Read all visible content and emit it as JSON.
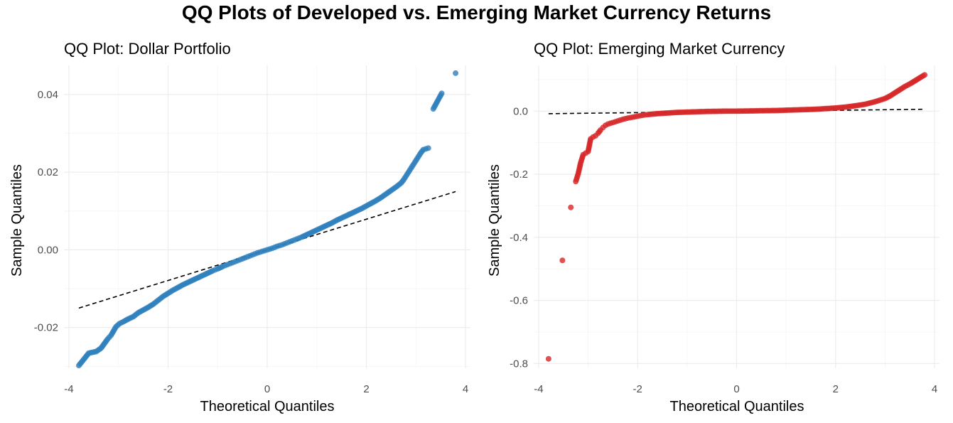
{
  "figure": {
    "title": "QQ Plots of Developed vs. Emerging Market Currency Returns"
  },
  "chart_data": [
    {
      "type": "scatter",
      "title": "QQ Plot: Dollar Portfolio",
      "xlabel": "Theoretical Quantiles",
      "ylabel": "Sample Quantiles",
      "xlim": [
        -4.1,
        4.1
      ],
      "ylim": [
        -0.0305,
        0.0475
      ],
      "xticks": [
        -4,
        -2,
        0,
        2,
        4
      ],
      "xtick_labels": [
        "-4",
        "-2",
        "0",
        "2",
        "4"
      ],
      "yticks": [
        -0.02,
        0.0,
        0.02,
        0.04
      ],
      "ytick_labels": [
        "-0.02",
        "0.00",
        "0.02",
        "0.04"
      ],
      "grid": true,
      "point_color": "#2e7fbd",
      "reference_line": {
        "x": [
          -3.8,
          3.8
        ],
        "y": [
          -0.015,
          0.015
        ]
      },
      "points": [
        [
          -3.8,
          -0.0298
        ],
        [
          -3.6,
          -0.0266
        ],
        [
          -3.45,
          -0.0262
        ],
        [
          -3.35,
          -0.0253
        ],
        [
          -3.22,
          -0.023
        ],
        [
          -3.15,
          -0.022
        ],
        [
          -3.05,
          -0.0198
        ],
        [
          -2.98,
          -0.019
        ],
        [
          -2.9,
          -0.0185
        ],
        [
          -2.8,
          -0.0178
        ],
        [
          -2.7,
          -0.0172
        ],
        [
          -2.6,
          -0.0162
        ],
        [
          -2.5,
          -0.0155
        ],
        [
          -2.4,
          -0.0148
        ],
        [
          -2.3,
          -0.014
        ],
        [
          -2.2,
          -0.013
        ],
        [
          -2.1,
          -0.012
        ],
        [
          -2.0,
          -0.0112
        ],
        [
          -1.9,
          -0.0104
        ],
        [
          -1.8,
          -0.0097
        ],
        [
          -1.7,
          -0.009
        ],
        [
          -1.6,
          -0.0084
        ],
        [
          -1.5,
          -0.0078
        ],
        [
          -1.4,
          -0.0072
        ],
        [
          -1.3,
          -0.0066
        ],
        [
          -1.2,
          -0.006
        ],
        [
          -1.1,
          -0.0054
        ],
        [
          -1.0,
          -0.0049
        ],
        [
          -0.9,
          -0.0043
        ],
        [
          -0.8,
          -0.0038
        ],
        [
          -0.7,
          -0.0033
        ],
        [
          -0.6,
          -0.0028
        ],
        [
          -0.5,
          -0.0023
        ],
        [
          -0.4,
          -0.0018
        ],
        [
          -0.3,
          -0.0013
        ],
        [
          -0.2,
          -0.0008
        ],
        [
          -0.1,
          -0.0004
        ],
        [
          0.0,
          0.0
        ],
        [
          0.1,
          0.0004
        ],
        [
          0.2,
          0.0009
        ],
        [
          0.3,
          0.0013
        ],
        [
          0.4,
          0.0018
        ],
        [
          0.5,
          0.0023
        ],
        [
          0.6,
          0.0028
        ],
        [
          0.7,
          0.0033
        ],
        [
          0.8,
          0.0039
        ],
        [
          0.9,
          0.0045
        ],
        [
          1.0,
          0.0051
        ],
        [
          1.1,
          0.0057
        ],
        [
          1.2,
          0.0063
        ],
        [
          1.3,
          0.0069
        ],
        [
          1.4,
          0.0076
        ],
        [
          1.5,
          0.0082
        ],
        [
          1.6,
          0.0088
        ],
        [
          1.7,
          0.0094
        ],
        [
          1.8,
          0.01
        ],
        [
          1.9,
          0.0106
        ],
        [
          2.0,
          0.0113
        ],
        [
          2.1,
          0.012
        ],
        [
          2.2,
          0.0127
        ],
        [
          2.3,
          0.0135
        ],
        [
          2.4,
          0.0144
        ],
        [
          2.5,
          0.0153
        ],
        [
          2.6,
          0.0162
        ],
        [
          2.7,
          0.0172
        ],
        [
          2.75,
          0.018
        ],
        [
          2.8,
          0.019
        ],
        [
          2.85,
          0.02
        ],
        [
          2.9,
          0.021
        ],
        [
          2.95,
          0.022
        ],
        [
          3.0,
          0.023
        ],
        [
          3.05,
          0.024
        ],
        [
          3.1,
          0.025
        ],
        [
          3.15,
          0.0258
        ],
        [
          3.25,
          0.0262
        ],
        [
          3.35,
          0.0363
        ],
        [
          3.52,
          0.0403
        ],
        [
          3.8,
          0.0455
        ]
      ]
    },
    {
      "type": "scatter",
      "title": "QQ Plot: Emerging Market Currency",
      "xlabel": "Theoretical Quantiles",
      "ylabel": "Sample Quantiles",
      "xlim": [
        -4.1,
        4.1
      ],
      "ylim": [
        -0.815,
        0.145
      ],
      "xticks": [
        -4,
        -2,
        0,
        2,
        4
      ],
      "xtick_labels": [
        "-4",
        "-2",
        "0",
        "2",
        "4"
      ],
      "yticks": [
        -0.8,
        -0.6,
        -0.4,
        -0.2,
        0.0
      ],
      "ytick_labels": [
        "-0.8",
        "-0.6",
        "-0.4",
        "-0.2",
        "0.0"
      ],
      "grid": true,
      "point_color": "#d62728",
      "reference_line": {
        "x": [
          -3.8,
          3.8
        ],
        "y": [
          -0.008,
          0.006
        ]
      },
      "points": [
        [
          -3.8,
          -0.785
        ],
        [
          -3.52,
          -0.473
        ],
        [
          -3.35,
          -0.305
        ],
        [
          -3.25,
          -0.223
        ],
        [
          -3.2,
          -0.198
        ],
        [
          -3.15,
          -0.163
        ],
        [
          -3.1,
          -0.138
        ],
        [
          -3.05,
          -0.133
        ],
        [
          -3.0,
          -0.128
        ],
        [
          -2.95,
          -0.088
        ],
        [
          -2.9,
          -0.082
        ],
        [
          -2.85,
          -0.078
        ],
        [
          -2.8,
          -0.07
        ],
        [
          -2.75,
          -0.06
        ],
        [
          -2.7,
          -0.052
        ],
        [
          -2.65,
          -0.045
        ],
        [
          -2.6,
          -0.041
        ],
        [
          -2.5,
          -0.036
        ],
        [
          -2.4,
          -0.031
        ],
        [
          -2.3,
          -0.026
        ],
        [
          -2.2,
          -0.022
        ],
        [
          -2.1,
          -0.019
        ],
        [
          -2.0,
          -0.016
        ],
        [
          -1.9,
          -0.013
        ],
        [
          -1.8,
          -0.011
        ],
        [
          -1.6,
          -0.008
        ],
        [
          -1.4,
          -0.006
        ],
        [
          -1.2,
          -0.004
        ],
        [
          -1.0,
          -0.003
        ],
        [
          -0.8,
          -0.002
        ],
        [
          -0.6,
          -0.001
        ],
        [
          -0.4,
          -0.0005
        ],
        [
          -0.2,
          0.0
        ],
        [
          0.0,
          0.0
        ],
        [
          0.2,
          0.0005
        ],
        [
          0.4,
          0.001
        ],
        [
          0.6,
          0.0015
        ],
        [
          0.8,
          0.002
        ],
        [
          1.0,
          0.003
        ],
        [
          1.2,
          0.004
        ],
        [
          1.4,
          0.005
        ],
        [
          1.6,
          0.006
        ],
        [
          1.8,
          0.008
        ],
        [
          2.0,
          0.01
        ],
        [
          2.2,
          0.013
        ],
        [
          2.4,
          0.017
        ],
        [
          2.6,
          0.022
        ],
        [
          2.8,
          0.03
        ],
        [
          3.0,
          0.04
        ],
        [
          3.1,
          0.048
        ],
        [
          3.2,
          0.058
        ],
        [
          3.3,
          0.068
        ],
        [
          3.4,
          0.078
        ],
        [
          3.52,
          0.088
        ],
        [
          3.8,
          0.115
        ]
      ]
    }
  ]
}
